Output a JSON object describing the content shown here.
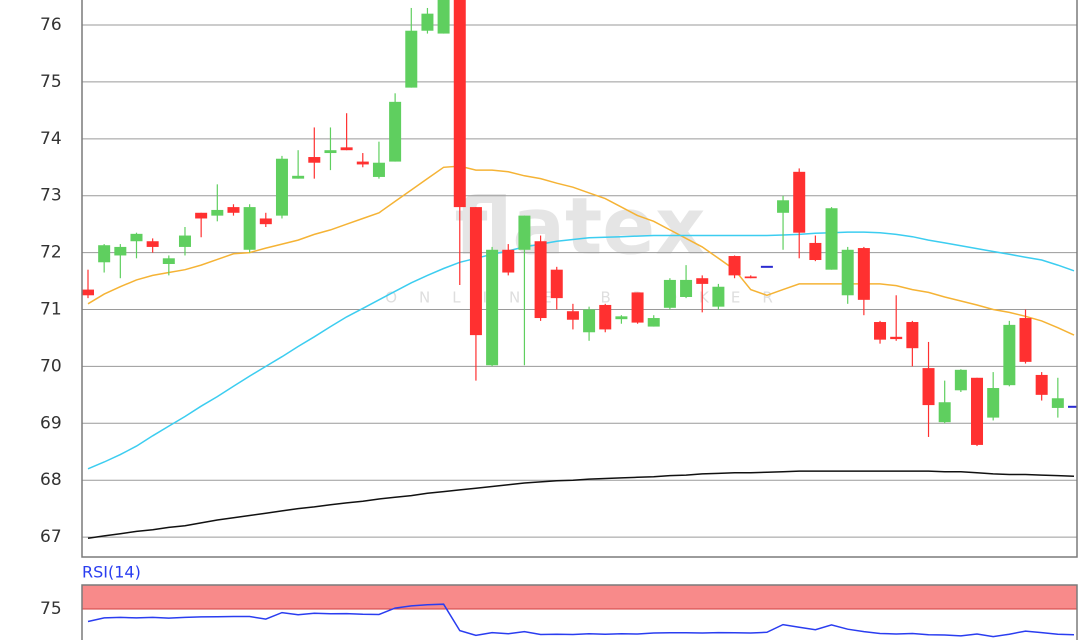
{
  "chart_data": [
    {
      "type": "candlestick",
      "watermark": [
        "flatex",
        "ONLINE BROKER"
      ],
      "ylim": [
        66.65,
        76.44
      ],
      "yticks": [
        67,
        68,
        69,
        70,
        71,
        72,
        73,
        74,
        75,
        76
      ],
      "grid": true,
      "up_color": "#5fcf5f",
      "down_color": "#ff3030",
      "flat_color": "#2a2ad0",
      "open": [
        71.35,
        71.83,
        71.95,
        72.2,
        72.2,
        71.8,
        72.1,
        72.7,
        72.65,
        72.8,
        72.05,
        72.6,
        72.65,
        73.3,
        73.68,
        73.75,
        73.85,
        73.6,
        73.33,
        73.6,
        74.9,
        75.9,
        75.85,
        76.6,
        72.8,
        70.02,
        72.05,
        72.05,
        72.2,
        71.7,
        70.97,
        70.6,
        71.08,
        70.83,
        71.3,
        70.7,
        71.03,
        71.22,
        71.55,
        71.05,
        71.94,
        71.58,
        71.75,
        72.7,
        73.42,
        72.17,
        71.7,
        71.25,
        72.08,
        70.78,
        70.52,
        70.78,
        69.97,
        69.02,
        69.58,
        69.8,
        69.1,
        69.67,
        70.85,
        69.85,
        69.27,
        69.29
      ],
      "high": [
        71.7,
        72.15,
        72.15,
        72.35,
        72.25,
        71.95,
        72.45,
        72.7,
        73.2,
        72.85,
        72.85,
        72.7,
        73.7,
        73.8,
        74.2,
        74.2,
        74.45,
        73.75,
        73.95,
        74.8,
        76.3,
        76.3,
        76.6,
        76.6,
        72.8,
        72.1,
        72.15,
        72.65,
        72.3,
        71.75,
        71.1,
        71.05,
        71.1,
        70.9,
        71.3,
        70.9,
        71.55,
        71.78,
        71.6,
        71.45,
        71.95,
        71.6,
        71.75,
        73.0,
        73.48,
        72.3,
        72.8,
        72.1,
        72.1,
        70.8,
        71.25,
        70.8,
        70.43,
        69.75,
        69.95,
        69.8,
        69.9,
        70.8,
        71.0,
        69.9,
        69.8,
        69.29
      ],
      "low": [
        71.2,
        71.65,
        71.55,
        71.9,
        72.0,
        71.6,
        71.95,
        72.27,
        72.55,
        72.65,
        72.0,
        72.45,
        72.6,
        73.3,
        73.3,
        73.45,
        73.8,
        73.5,
        73.3,
        73.6,
        74.9,
        75.85,
        75.85,
        71.43,
        69.75,
        70.0,
        71.6,
        70.02,
        70.8,
        71.0,
        70.65,
        70.45,
        70.6,
        70.75,
        70.75,
        70.7,
        71.0,
        71.2,
        70.95,
        71.0,
        71.55,
        71.55,
        71.75,
        72.05,
        71.9,
        71.85,
        71.7,
        71.1,
        70.9,
        70.4,
        70.45,
        70.0,
        68.76,
        69.0,
        69.55,
        68.6,
        69.05,
        69.65,
        70.05,
        69.4,
        69.1,
        69.29
      ],
      "close": [
        71.25,
        72.13,
        72.1,
        72.33,
        72.1,
        71.9,
        72.3,
        72.6,
        72.75,
        72.7,
        72.8,
        72.5,
        73.65,
        73.35,
        73.58,
        73.8,
        73.8,
        73.55,
        73.58,
        74.65,
        75.9,
        76.2,
        76.6,
        72.8,
        70.55,
        72.05,
        71.65,
        72.65,
        70.85,
        71.2,
        70.82,
        71.0,
        70.65,
        70.88,
        70.77,
        70.85,
        71.52,
        71.52,
        71.45,
        71.4,
        71.6,
        71.55,
        71.75,
        72.92,
        72.35,
        71.87,
        72.78,
        72.05,
        71.17,
        70.47,
        70.48,
        70.32,
        69.32,
        69.37,
        69.94,
        68.62,
        69.62,
        70.73,
        70.08,
        69.5,
        69.44,
        69.29
      ],
      "lines": [
        {
          "color": "#f5b335",
          "values": [
            71.1,
            71.27,
            71.4,
            71.52,
            71.6,
            71.65,
            71.7,
            71.78,
            71.88,
            71.98,
            72.0,
            72.08,
            72.15,
            72.22,
            72.32,
            72.4,
            72.5,
            72.6,
            72.7,
            72.9,
            73.1,
            73.3,
            73.5,
            73.52,
            73.45,
            73.45,
            73.42,
            73.35,
            73.3,
            73.22,
            73.15,
            73.05,
            72.95,
            72.8,
            72.65,
            72.55,
            72.4,
            72.25,
            72.1,
            71.9,
            71.7,
            71.35,
            71.25,
            71.35,
            71.45,
            71.45,
            71.45,
            71.45,
            71.45,
            71.45,
            71.42,
            71.35,
            71.3,
            71.22,
            71.15,
            71.08,
            71.0,
            70.95,
            70.88,
            70.8,
            70.68,
            70.55
          ]
        },
        {
          "color": "#3ccdf0",
          "values": [
            68.2,
            68.32,
            68.45,
            68.6,
            68.78,
            68.95,
            69.12,
            69.3,
            69.47,
            69.65,
            69.83,
            70.0,
            70.17,
            70.35,
            70.52,
            70.7,
            70.87,
            71.02,
            71.17,
            71.32,
            71.47,
            71.6,
            71.72,
            71.83,
            71.9,
            71.97,
            72.03,
            72.1,
            72.15,
            72.2,
            72.23,
            72.26,
            72.27,
            72.28,
            72.29,
            72.3,
            72.3,
            72.3,
            72.3,
            72.3,
            72.3,
            72.3,
            72.3,
            72.31,
            72.32,
            72.34,
            72.35,
            72.36,
            72.36,
            72.35,
            72.32,
            72.28,
            72.22,
            72.17,
            72.12,
            72.07,
            72.02,
            71.97,
            71.92,
            71.87,
            71.78,
            71.68
          ]
        },
        {
          "color": "#111111",
          "values": [
            66.98,
            67.02,
            67.06,
            67.1,
            67.13,
            67.17,
            67.2,
            67.25,
            67.3,
            67.34,
            67.38,
            67.42,
            67.46,
            67.5,
            67.53,
            67.57,
            67.6,
            67.63,
            67.67,
            67.7,
            67.73,
            67.77,
            67.8,
            67.83,
            67.86,
            67.89,
            67.92,
            67.95,
            67.97,
            67.99,
            68.0,
            68.02,
            68.03,
            68.04,
            68.05,
            68.06,
            68.08,
            68.09,
            68.11,
            68.12,
            68.13,
            68.13,
            68.14,
            68.15,
            68.16,
            68.16,
            68.16,
            68.16,
            68.16,
            68.16,
            68.16,
            68.16,
            68.16,
            68.15,
            68.15,
            68.13,
            68.11,
            68.1,
            68.1,
            68.09,
            68.08,
            68.07
          ]
        }
      ]
    },
    {
      "type": "line",
      "title": "RSI(14)",
      "title_color": "#2a3df0",
      "ylim": [
        62.1,
        85
      ],
      "yticks": [
        75
      ],
      "overbought": 75,
      "band_color": "#f88a8a",
      "color": "#2a3df0",
      "values": [
        69.8,
        71.3,
        71.5,
        71.3,
        71.5,
        71.2,
        71.5,
        71.7,
        71.8,
        71.9,
        71.9,
        70.8,
        73.5,
        72.6,
        73.2,
        73.0,
        73.1,
        72.8,
        72.7,
        75.4,
        76.3,
        76.8,
        77.0,
        66.0,
        64.0,
        65.2,
        64.7,
        65.6,
        64.4,
        64.5,
        64.4,
        64.7,
        64.5,
        64.7,
        64.6,
        65.0,
        65.1,
        65.1,
        65.0,
        65.2,
        65.1,
        65.0,
        65.3,
        68.5,
        67.4,
        66.4,
        68.4,
        66.6,
        65.6,
        64.8,
        64.6,
        64.8,
        64.3,
        64.2,
        63.8,
        64.6,
        63.5,
        64.5,
        65.8,
        65.2,
        64.5,
        64.3
      ]
    }
  ]
}
